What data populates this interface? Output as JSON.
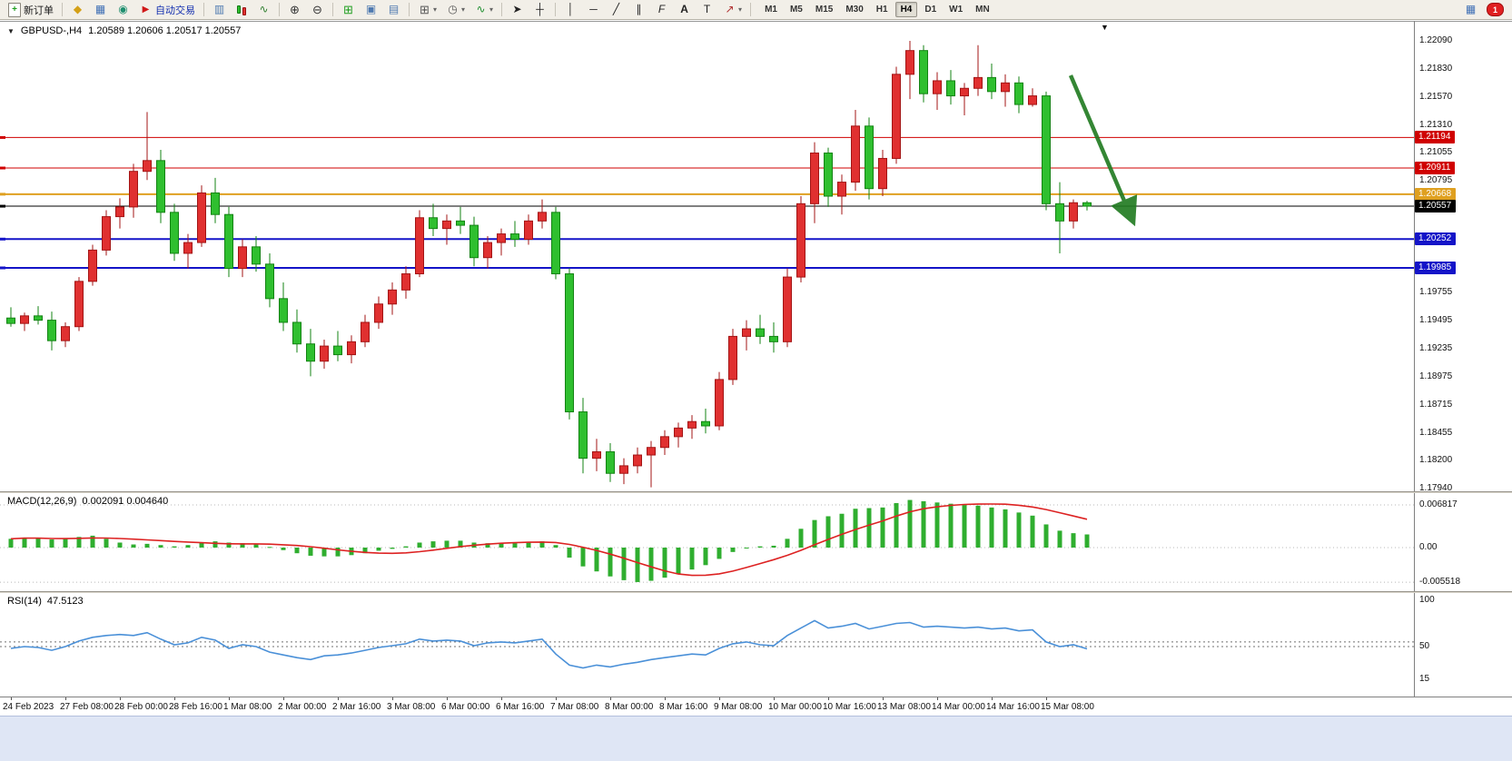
{
  "toolbar": {
    "new_order": {
      "label": "新订单"
    },
    "autotrading": {
      "label": "自动交易"
    },
    "timeframes": {
      "items": [
        "M1",
        "M5",
        "M15",
        "M30",
        "H1",
        "H4",
        "D1",
        "W1",
        "MN"
      ],
      "active": "H4"
    },
    "notification": {
      "count": "1"
    }
  },
  "icons": {
    "menu-down-icon": "▼",
    "shift-marker-icon": "▼",
    "new-order-plus": "+",
    "market-watch-icon": "◆",
    "data-window-icon": "▦",
    "navigator-icon": "◉",
    "autotrading-icon": "▶",
    "bar-chart-icon": "▥",
    "line-chart-icon": "∿",
    "zoom-in-icon": "⊕",
    "zoom-out-icon": "⊖",
    "tile-windows-icon": "⊞",
    "cascade-windows-icon": "▣",
    "tile-horizontal-icon": "▤",
    "grid-icon": "⊞",
    "clock-icon": "◷",
    "indicators-icon": "∿",
    "cursor-icon": "➤",
    "crosshair-icon": "┼",
    "vline-icon": "│",
    "hline-icon": "─",
    "trendline-icon": "╱",
    "channel-icon": "∥",
    "fibonacci-icon": "F",
    "text-icon": "A",
    "label-icon": "T",
    "arrows-icon": "↗",
    "dropdown-icon": "▾",
    "terminal-icon": "▦"
  },
  "chart": {
    "symbol_tf": "GBPUSD-,H4",
    "quote": "1.20589 1.20606 1.20517 1.20557"
  },
  "chart_data": {
    "type": "candlestick",
    "symbol": "GBPUSD-",
    "timeframe": "H4",
    "ohlc_display": {
      "open": "1.20589",
      "high": "1.20606",
      "low": "1.20517",
      "close": "1.20557"
    },
    "colors": {
      "bull": "#e03030",
      "bull_edge": "#a31414",
      "bear": "#2fbf2f",
      "bear_edge": "#13831 3",
      "bear_edge_fix": "#138313",
      "macd_histogram": "#2fae2f",
      "macd_signal": "#dd2222",
      "rsi_line": "#4a90d8",
      "arrow": "#1f7a1f"
    },
    "price_axis_labels": [
      "1.22090",
      "1.21830",
      "1.21570",
      "1.21310",
      "1.21055",
      "1.20795",
      "1.19755",
      "1.19495",
      "1.19235",
      "1.18975",
      "1.18715",
      "1.18455",
      "1.18200",
      "1.17940"
    ],
    "hlines": [
      {
        "label": "1.21194",
        "color": "#d00000",
        "lw": 1
      },
      {
        "label": "1.20911",
        "color": "#d00000",
        "lw": 1
      },
      {
        "label": "1.20668",
        "color": "#dfa020",
        "lw": 2
      },
      {
        "label": "1.20252",
        "color": "#1414c8",
        "lw": 2
      },
      {
        "label": "1.19985",
        "color": "#1414c8",
        "lw": 2
      }
    ],
    "current_price": {
      "label": "1.20557",
      "color": "#000000"
    },
    "trend_arrow": {
      "from_price": 1.2177,
      "to_price": 1.2044,
      "from_index": 77.8,
      "to_index": 82.3
    },
    "x_labels": [
      "24 Feb 2023",
      "27 Feb 08:00",
      "28 Feb 00:00",
      "28 Feb 16:00",
      "1 Mar 08:00",
      "2 Mar 00:00",
      "2 Mar 16:00",
      "3 Mar 08:00",
      "6 Mar 00:00",
      "6 Mar 16:00",
      "7 Mar 08:00",
      "8 Mar 00:00",
      "8 Mar 16:00",
      "9 Mar 08:00",
      "10 Mar 00:00",
      "10 Mar 16:00",
      "13 Mar 08:00",
      "14 Mar 00:00",
      "14 Mar 16:00",
      "15 Mar 08:00"
    ],
    "candles": [
      [
        1.1952,
        1.1962,
        1.1944,
        1.1947
      ],
      [
        1.1947,
        1.1957,
        1.194,
        1.1954
      ],
      [
        1.1954,
        1.1963,
        1.1946,
        1.195
      ],
      [
        1.195,
        1.1958,
        1.1922,
        1.1931
      ],
      [
        1.1931,
        1.1948,
        1.1925,
        1.1944
      ],
      [
        1.1944,
        1.199,
        1.194,
        1.1986
      ],
      [
        1.1986,
        1.202,
        1.1982,
        1.2015
      ],
      [
        1.2015,
        1.2052,
        1.201,
        1.2046
      ],
      [
        1.2046,
        1.2063,
        1.2035,
        1.2055
      ],
      [
        1.2055,
        1.2095,
        1.2045,
        1.2088
      ],
      [
        1.2088,
        1.2143,
        1.208,
        1.2098
      ],
      [
        1.2098,
        1.2108,
        1.204,
        1.205
      ],
      [
        1.205,
        1.2058,
        1.2005,
        1.2012
      ],
      [
        1.2012,
        1.203,
        1.1998,
        1.2022
      ],
      [
        1.2022,
        1.2075,
        1.2018,
        1.2068
      ],
      [
        1.2068,
        1.2082,
        1.204,
        1.2048
      ],
      [
        1.2048,
        1.2055,
        1.199,
        1.1998
      ],
      [
        1.1998,
        1.2025,
        1.199,
        1.2018
      ],
      [
        1.2018,
        1.2028,
        1.1995,
        1.2002
      ],
      [
        1.2002,
        1.2012,
        1.1962,
        1.197
      ],
      [
        1.197,
        1.1985,
        1.194,
        1.1948
      ],
      [
        1.1948,
        1.196,
        1.192,
        1.1928
      ],
      [
        1.1928,
        1.1942,
        1.1898,
        1.1912
      ],
      [
        1.1912,
        1.1932,
        1.1905,
        1.1926
      ],
      [
        1.1926,
        1.194,
        1.1912,
        1.1918
      ],
      [
        1.1918,
        1.1936,
        1.191,
        1.193
      ],
      [
        1.193,
        1.1955,
        1.1925,
        1.1948
      ],
      [
        1.1948,
        1.1972,
        1.1942,
        1.1965
      ],
      [
        1.1965,
        1.1985,
        1.1955,
        1.1978
      ],
      [
        1.1978,
        1.2,
        1.197,
        1.1993
      ],
      [
        1.1993,
        1.2052,
        1.199,
        1.2045
      ],
      [
        1.2045,
        1.2058,
        1.2028,
        1.2035
      ],
      [
        1.2035,
        1.2048,
        1.202,
        1.2042
      ],
      [
        1.2042,
        1.2055,
        1.203,
        1.2038
      ],
      [
        1.2038,
        1.2046,
        1.2,
        1.2008
      ],
      [
        1.2008,
        1.2028,
        1.1998,
        1.2022
      ],
      [
        1.2022,
        1.2035,
        1.201,
        1.203
      ],
      [
        1.203,
        1.2042,
        1.2018,
        1.2025
      ],
      [
        1.2025,
        1.2048,
        1.202,
        1.2042
      ],
      [
        1.2042,
        1.2062,
        1.2035,
        1.205
      ],
      [
        1.205,
        1.2055,
        1.1988,
        1.1993
      ],
      [
        1.1993,
        1.1998,
        1.1858,
        1.1865
      ],
      [
        1.1865,
        1.1878,
        1.1808,
        1.1822
      ],
      [
        1.1822,
        1.184,
        1.181,
        1.1828
      ],
      [
        1.1828,
        1.1836,
        1.18,
        1.1808
      ],
      [
        1.1808,
        1.1822,
        1.1798,
        1.1815
      ],
      [
        1.1815,
        1.1832,
        1.1808,
        1.1825
      ],
      [
        1.1825,
        1.1838,
        1.1795,
        1.1832
      ],
      [
        1.1832,
        1.1848,
        1.1825,
        1.1842
      ],
      [
        1.1842,
        1.1855,
        1.1832,
        1.185
      ],
      [
        1.185,
        1.1862,
        1.184,
        1.1856
      ],
      [
        1.1856,
        1.1868,
        1.1845,
        1.1852
      ],
      [
        1.1852,
        1.1902,
        1.1848,
        1.1895
      ],
      [
        1.1895,
        1.1942,
        1.189,
        1.1935
      ],
      [
        1.1935,
        1.195,
        1.1922,
        1.1942
      ],
      [
        1.1942,
        1.1955,
        1.1928,
        1.1935
      ],
      [
        1.1935,
        1.1948,
        1.192,
        1.193
      ],
      [
        1.193,
        1.1998,
        1.1925,
        1.199
      ],
      [
        1.199,
        1.2065,
        1.1985,
        1.2058
      ],
      [
        1.2058,
        1.2115,
        1.204,
        1.2105
      ],
      [
        1.2105,
        1.211,
        1.2055,
        1.2065
      ],
      [
        1.2065,
        1.2085,
        1.2048,
        1.2078
      ],
      [
        1.2078,
        1.2145,
        1.207,
        1.213
      ],
      [
        1.213,
        1.2138,
        1.2062,
        1.2072
      ],
      [
        1.2072,
        1.2108,
        1.2065,
        1.21
      ],
      [
        1.21,
        1.2185,
        1.2095,
        1.2178
      ],
      [
        1.2178,
        1.2209,
        1.2155,
        1.22
      ],
      [
        1.22,
        1.2205,
        1.2152,
        1.216
      ],
      [
        1.216,
        1.218,
        1.2145,
        1.2172
      ],
      [
        1.2172,
        1.2182,
        1.215,
        1.2158
      ],
      [
        1.2158,
        1.217,
        1.214,
        1.2165
      ],
      [
        1.2165,
        1.2205,
        1.2158,
        1.2175
      ],
      [
        1.2175,
        1.2188,
        1.2155,
        1.2162
      ],
      [
        1.2162,
        1.2178,
        1.2148,
        1.217
      ],
      [
        1.217,
        1.2176,
        1.2142,
        1.215
      ],
      [
        1.215,
        1.2165,
        1.2148,
        1.2158
      ],
      [
        1.2158,
        1.2162,
        1.2052,
        1.2058
      ],
      [
        1.2058,
        1.2078,
        1.2012,
        1.2042
      ],
      [
        1.2042,
        1.2062,
        1.2035,
        1.20589
      ],
      [
        1.20589,
        1.20606,
        1.20517,
        1.20557
      ]
    ],
    "macd": {
      "label": "MACD(12,26,9)",
      "values_text": "0.002091 0.004640",
      "axis_labels": [
        "0.006817",
        "0.00",
        "-0.005518"
      ],
      "histogram": [
        0.0014,
        0.0016,
        0.0015,
        0.0013,
        0.0014,
        0.0017,
        0.0019,
        0.0014,
        0.0008,
        0.0005,
        0.0006,
        0.0004,
        0.0002,
        0.0004,
        0.0008,
        0.001,
        0.0008,
        0.0007,
        0.0005,
        0.0001,
        -0.0004,
        -0.0009,
        -0.0013,
        -0.0014,
        -0.0014,
        -0.0012,
        -0.0009,
        -0.0005,
        -0.0002,
        0.0002,
        0.0008,
        0.001,
        0.0011,
        0.0011,
        0.0008,
        0.0007,
        0.0007,
        0.0007,
        0.0008,
        0.001,
        0.0004,
        -0.0016,
        -0.003,
        -0.0038,
        -0.0046,
        -0.0052,
        -0.0055,
        -0.0053,
        -0.0048,
        -0.0042,
        -0.0035,
        -0.0028,
        -0.0018,
        -0.0007,
        0.0,
        0.0002,
        0.0003,
        0.0014,
        0.003,
        0.0044,
        0.005,
        0.0054,
        0.0062,
        0.0063,
        0.0064,
        0.0071,
        0.0076,
        0.0074,
        0.0072,
        0.007,
        0.0068,
        0.0067,
        0.0064,
        0.0061,
        0.0056,
        0.0051,
        0.0037,
        0.0027,
        0.0023,
        0.0021
      ]
    },
    "rsi": {
      "label": "RSI(14)",
      "value_text": "47.5123",
      "axis_labels": [
        "100",
        "50",
        "15"
      ],
      "levels": [
        55,
        50
      ],
      "values": [
        48,
        50,
        49,
        46,
        50,
        56,
        60,
        62,
        63,
        62,
        65,
        58,
        52,
        54,
        60,
        57,
        48,
        52,
        50,
        44,
        41,
        38,
        36,
        40,
        41,
        43,
        46,
        49,
        51,
        53,
        58,
        56,
        57,
        56,
        51,
        54,
        55,
        54,
        56,
        58,
        42,
        30,
        27,
        30,
        28,
        31,
        33,
        36,
        38,
        40,
        42,
        41,
        48,
        53,
        55,
        52,
        51,
        62,
        70,
        78,
        70,
        72,
        75,
        69,
        72,
        75,
        76,
        71,
        72,
        71,
        70,
        71,
        69,
        70,
        67,
        68,
        55,
        50,
        52,
        47.5
      ]
    }
  }
}
